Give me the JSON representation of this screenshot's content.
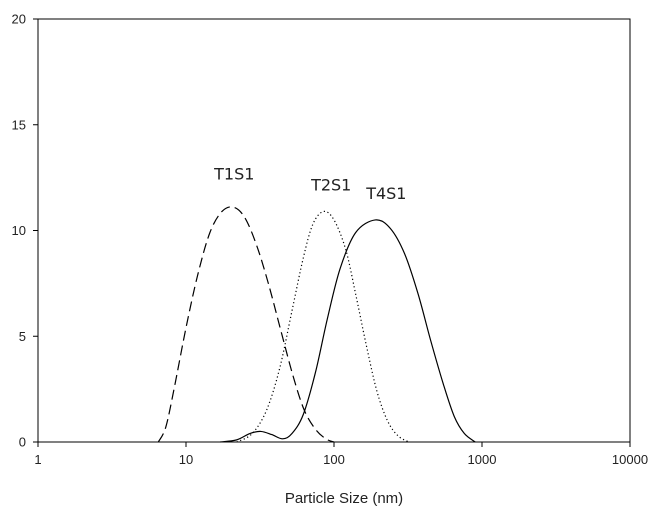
{
  "chart_data": {
    "type": "line",
    "title": "",
    "xlabel": "Particle Size (nm)",
    "ylabel": "",
    "xscale": "log",
    "xlim": [
      1,
      10000
    ],
    "ylim": [
      0,
      20
    ],
    "xticks": [
      1,
      10,
      100,
      1000,
      10000
    ],
    "xtick_labels": [
      "1",
      "10",
      "100",
      "1000",
      "10000"
    ],
    "yticks": [
      0,
      5,
      10,
      15,
      20
    ],
    "ytick_labels": [
      "0",
      "5",
      "10",
      "15",
      "20"
    ],
    "grid": false,
    "legend": "none",
    "series": [
      {
        "name": "T1S1",
        "line_style": "dashed",
        "color": "#000000",
        "label_at": [
          15.5,
          12.4
        ],
        "points": [
          [
            6.5,
            0
          ],
          [
            7.3,
            0.7
          ],
          [
            8.3,
            2.5
          ],
          [
            10,
            5.4
          ],
          [
            12,
            7.9
          ],
          [
            14.5,
            9.9
          ],
          [
            17.5,
            10.9
          ],
          [
            21,
            11.1
          ],
          [
            25,
            10.6
          ],
          [
            30,
            9.3
          ],
          [
            36,
            7.5
          ],
          [
            44,
            5.2
          ],
          [
            53,
            3.1
          ],
          [
            63,
            1.5
          ],
          [
            75,
            0.6
          ],
          [
            88,
            0.15
          ],
          [
            100,
            0
          ]
        ]
      },
      {
        "name": "T2S1",
        "line_style": "dotted",
        "color": "#000000",
        "label_at": [
          70,
          11.9
        ],
        "points": [
          [
            22,
            0
          ],
          [
            28,
            0.4
          ],
          [
            35,
            1.5
          ],
          [
            43,
            3.5
          ],
          [
            52,
            6.2
          ],
          [
            62,
            8.7
          ],
          [
            72,
            10.3
          ],
          [
            85,
            10.9
          ],
          [
            100,
            10.5
          ],
          [
            120,
            9.1
          ],
          [
            140,
            7.0
          ],
          [
            165,
            4.6
          ],
          [
            195,
            2.4
          ],
          [
            230,
            1.0
          ],
          [
            270,
            0.3
          ],
          [
            320,
            0
          ]
        ]
      },
      {
        "name": "T4S1",
        "line_style": "solid",
        "color": "#000000",
        "label_at": [
          165,
          11.5
        ],
        "points": [
          [
            17,
            0
          ],
          [
            22,
            0.1
          ],
          [
            27,
            0.4
          ],
          [
            32,
            0.5
          ],
          [
            38,
            0.35
          ],
          [
            45,
            0.15
          ],
          [
            52,
            0.4
          ],
          [
            62,
            1.3
          ],
          [
            75,
            3.3
          ],
          [
            90,
            5.8
          ],
          [
            110,
            8.2
          ],
          [
            140,
            9.9
          ],
          [
            190,
            10.5
          ],
          [
            240,
            10.1
          ],
          [
            300,
            8.9
          ],
          [
            370,
            7.0
          ],
          [
            450,
            4.8
          ],
          [
            550,
            2.7
          ],
          [
            650,
            1.2
          ],
          [
            760,
            0.4
          ],
          [
            900,
            0
          ]
        ]
      }
    ]
  }
}
